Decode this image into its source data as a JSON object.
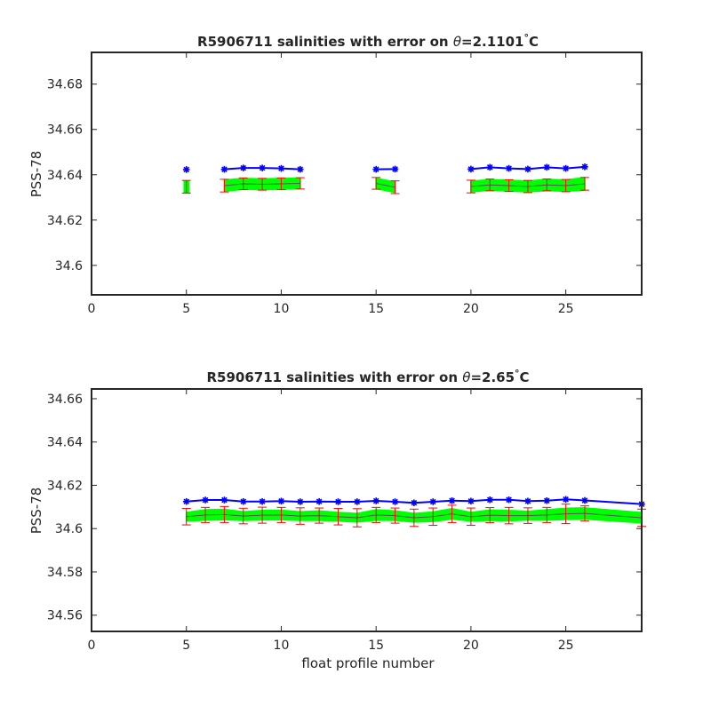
{
  "figure": {
    "xlabel": "float profile number"
  },
  "chart_data": [
    {
      "type": "line",
      "title_prefix": "R5906711 salinities with error on ",
      "title_theta": "θ",
      "title_suffix": "=2.1101",
      "title_degree": "°",
      "title_unit": "C",
      "ylabel": "PSS-78",
      "xlim": [
        0,
        29
      ],
      "ylim": [
        34.587,
        34.694
      ],
      "xticks": [
        0,
        5,
        10,
        15,
        20,
        25
      ],
      "yticks": [
        34.6,
        34.62,
        34.64,
        34.66,
        34.68
      ],
      "ytick_labels": [
        "34.6",
        "34.62",
        "34.64",
        "34.66",
        "34.68"
      ],
      "grid": false,
      "series": [
        {
          "role": "float",
          "color": "#0000ff",
          "marker": "asterisk",
          "x": [
            5,
            7,
            8,
            9,
            10,
            11,
            15,
            16,
            20,
            21,
            22,
            23,
            24,
            25,
            26
          ],
          "y": [
            34.6423,
            34.6424,
            34.643,
            34.643,
            34.6428,
            34.6424,
            34.6424,
            34.6425,
            34.6425,
            34.6433,
            34.6428,
            34.6425,
            34.6433,
            34.6428,
            34.6435
          ],
          "breaks_after_x": [
            5,
            11,
            16
          ]
        },
        {
          "role": "mapped-error",
          "color": "#ff0000",
          "band_color": "#00ff00",
          "x": [
            5,
            7,
            8,
            9,
            10,
            11,
            15,
            16,
            20,
            21,
            22,
            23,
            24,
            25,
            26
          ],
          "y": [
            34.6347,
            34.6352,
            34.636,
            34.6358,
            34.636,
            34.6362,
            34.6362,
            34.6345,
            34.6348,
            34.6355,
            34.6352,
            34.6348,
            34.6355,
            34.6352,
            34.636
          ],
          "err": [
            0.0028,
            0.0028,
            0.0026,
            0.0026,
            0.0026,
            0.0025,
            0.0026,
            0.0028,
            0.0028,
            0.0026,
            0.0026,
            0.0027,
            0.0026,
            0.0027,
            0.0028
          ],
          "band": [
            0.0024,
            0.0025,
            0.0024,
            0.0024,
            0.0024,
            0.0023,
            0.0023,
            0.0023,
            0.0024,
            0.0023,
            0.0024,
            0.0024,
            0.0025,
            0.0025,
            0.0028
          ]
        }
      ]
    },
    {
      "type": "line",
      "title_prefix": "R5906711 salinities with error on ",
      "title_theta": "θ",
      "title_suffix": "=2.65",
      "title_degree": "°",
      "title_unit": "C",
      "ylabel": "PSS-78",
      "xlim": [
        0,
        29
      ],
      "ylim": [
        34.5525,
        34.6645
      ],
      "xticks": [
        0,
        5,
        10,
        15,
        20,
        25
      ],
      "yticks": [
        34.56,
        34.58,
        34.6,
        34.62,
        34.64,
        34.66
      ],
      "ytick_labels": [
        "34.56",
        "34.58",
        "34.6",
        "34.62",
        "34.64",
        "34.66"
      ],
      "grid": false,
      "series": [
        {
          "role": "float",
          "color": "#0000ff",
          "marker": "asterisk",
          "x": [
            5,
            6,
            7,
            8,
            9,
            10,
            11,
            12,
            13,
            14,
            15,
            16,
            17,
            18,
            19,
            20,
            21,
            22,
            23,
            24,
            25,
            26,
            29
          ],
          "y": [
            34.6125,
            34.6132,
            34.6132,
            34.6125,
            34.6125,
            34.6127,
            34.6124,
            34.6125,
            34.6124,
            34.6124,
            34.6128,
            34.6124,
            34.6119,
            34.6124,
            34.6129,
            34.6127,
            34.6133,
            34.6133,
            34.6127,
            34.6129,
            34.6135,
            34.613,
            34.6113
          ],
          "breaks_after_x": []
        },
        {
          "role": "mapped-error",
          "color": "#ff0000",
          "band_color": "#00ff00",
          "x": [
            5,
            6,
            7,
            8,
            9,
            10,
            11,
            12,
            13,
            14,
            15,
            16,
            17,
            18,
            19,
            20,
            21,
            22,
            23,
            24,
            25,
            26,
            29
          ],
          "y": [
            34.6055,
            34.6063,
            34.6065,
            34.6058,
            34.6062,
            34.6063,
            34.6058,
            34.606,
            34.6055,
            34.605,
            34.6063,
            34.606,
            34.605,
            34.6055,
            34.6068,
            34.6055,
            34.6062,
            34.606,
            34.606,
            34.6063,
            34.6068,
            34.607,
            34.605
          ],
          "err": [
            0.0038,
            0.0035,
            0.0037,
            0.0036,
            0.0037,
            0.0035,
            0.0038,
            0.0035,
            0.0038,
            0.0042,
            0.0035,
            0.0035,
            0.004,
            0.004,
            0.004,
            0.004,
            0.0035,
            0.0038,
            0.0036,
            0.0035,
            0.0045,
            0.0035,
            0.004
          ],
          "band": [
            0.002,
            0.0024,
            0.0024,
            0.002,
            0.0022,
            0.0022,
            0.002,
            0.0022,
            0.002,
            0.002,
            0.0024,
            0.0022,
            0.002,
            0.0022,
            0.0024,
            0.002,
            0.0024,
            0.0024,
            0.002,
            0.0024,
            0.0026,
            0.0026,
            0.0024
          ]
        }
      ]
    }
  ]
}
